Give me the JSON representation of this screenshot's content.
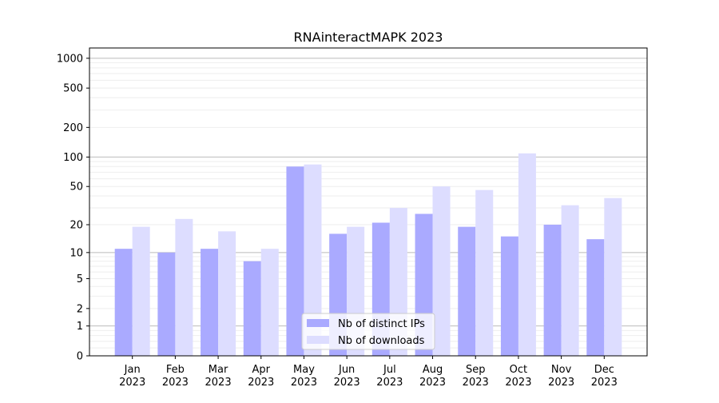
{
  "chart_data": {
    "type": "bar",
    "title": "RNAinteractMAPK 2023",
    "xlabel": "",
    "ylabel": "",
    "yscale": "log10(1+y)",
    "ylim": [
      0,
      1270
    ],
    "yticks": [
      0,
      1,
      2,
      5,
      10,
      20,
      50,
      100,
      200,
      500,
      1000
    ],
    "grid": true,
    "legend_position": "bottom-center",
    "categories": [
      "Jan\n2023",
      "Feb\n2023",
      "Mar\n2023",
      "Apr\n2023",
      "May\n2023",
      "Jun\n2023",
      "Jul\n2023",
      "Aug\n2023",
      "Sep\n2023",
      "Oct\n2023",
      "Nov\n2023",
      "Dec\n2023"
    ],
    "series": [
      {
        "name": "Nb of distinct IPs",
        "color": "#aaaaff",
        "values": [
          11,
          10,
          11,
          8,
          80,
          16,
          21,
          26,
          19,
          15,
          20,
          14
        ]
      },
      {
        "name": "Nb of downloads",
        "color": "#ddddff",
        "values": [
          19,
          23,
          17,
          11,
          84,
          19,
          30,
          50,
          46,
          109,
          32,
          38
        ]
      }
    ]
  }
}
